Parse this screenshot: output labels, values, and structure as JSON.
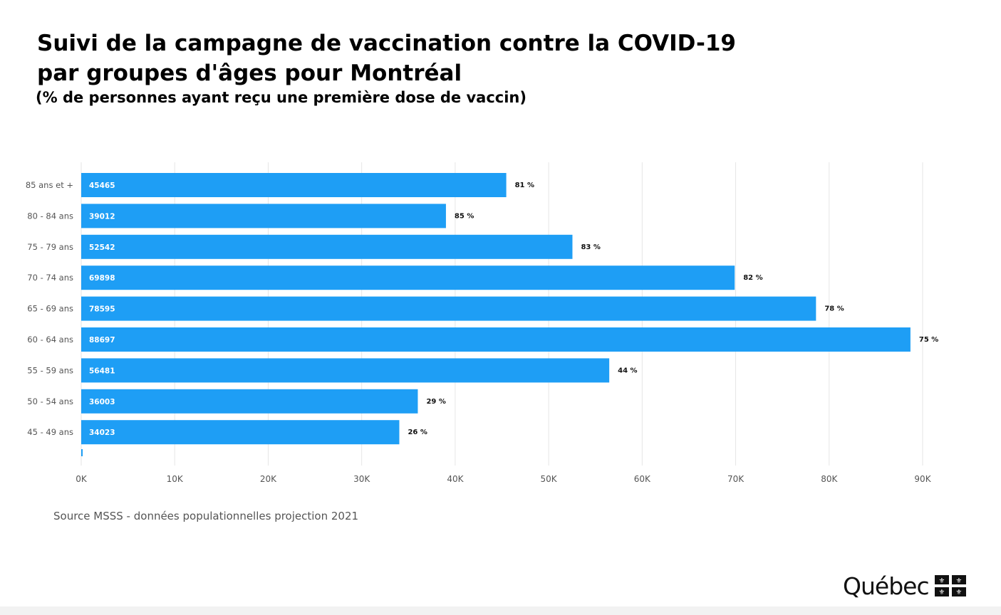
{
  "header": {
    "title_line1": "Suivi de la campagne de vaccination contre la COVID-19",
    "title_line2": "par groupes d'âges pour Montréal",
    "subtitle": "(% de personnes ayant reçu une première dose de vaccin)"
  },
  "source": "Source MSSS - données populationnelles projection 2021",
  "logo": {
    "wordmark": "Québec"
  },
  "colors": {
    "bar": "#1e9ef5",
    "grid": "#e6e6e6",
    "axis_text": "#555555",
    "bar_label": "#ffffff",
    "pct_label": "#111111"
  },
  "chart_data": {
    "type": "bar",
    "orientation": "horizontal",
    "categories": [
      "85 ans et +",
      "80 - 84 ans",
      "75 - 79 ans",
      "70 - 74 ans",
      "65 - 69 ans",
      "60 - 64 ans",
      "55 - 59 ans",
      "50 - 54 ans",
      "45 - 49 ans"
    ],
    "values": [
      45465,
      39012,
      52542,
      69898,
      78595,
      88697,
      56481,
      36003,
      34023
    ],
    "value_labels": [
      "45465",
      "39012",
      "52542",
      "69898",
      "78595",
      "88697",
      "56481",
      "36003",
      "34023"
    ],
    "percent_labels": [
      "81 %",
      "85 %",
      "83 %",
      "82 %",
      "78 %",
      "75 %",
      "44 %",
      "29 %",
      "26 %"
    ],
    "xlim": [
      0,
      90000
    ],
    "xticks": [
      0,
      10000,
      20000,
      30000,
      40000,
      50000,
      60000,
      70000,
      80000,
      90000
    ],
    "xtick_labels": [
      "0K",
      "10K",
      "20K",
      "30K",
      "40K",
      "50K",
      "60K",
      "70K",
      "80K",
      "90K"
    ],
    "grid": true,
    "title": "",
    "xlabel": "",
    "ylabel": ""
  }
}
